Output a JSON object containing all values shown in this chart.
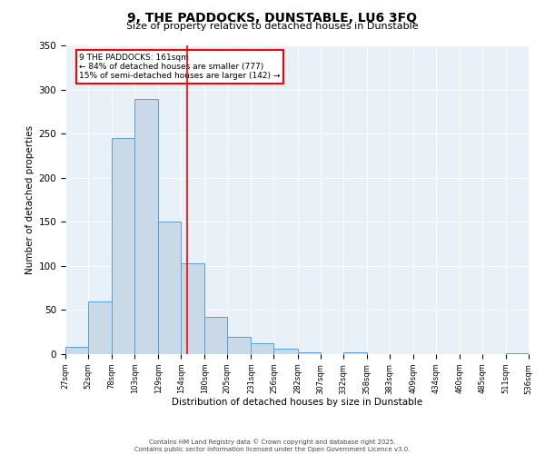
{
  "title": "9, THE PADDOCKS, DUNSTABLE, LU6 3FQ",
  "subtitle": "Size of property relative to detached houses in Dunstable",
  "xlabel": "Distribution of detached houses by size in Dunstable",
  "ylabel": "Number of detached properties",
  "bin_edges": [
    27,
    52,
    78,
    103,
    129,
    154,
    180,
    205,
    231,
    256,
    282,
    307,
    332,
    358,
    383,
    409,
    434,
    460,
    485,
    511,
    536
  ],
  "bar_heights": [
    8,
    60,
    245,
    289,
    150,
    103,
    42,
    20,
    12,
    6,
    2,
    0,
    2,
    0,
    0,
    0,
    0,
    0,
    0,
    1
  ],
  "bar_color": "#c9d9e8",
  "bar_edge_color": "#5a9fd4",
  "vline_x": 161,
  "vline_color": "red",
  "annotation_title": "9 THE PADDOCKS: 161sqm",
  "annotation_line1": "← 84% of detached houses are smaller (777)",
  "annotation_line2": "15% of semi-detached houses are larger (142) →",
  "annotation_box_color": "red",
  "ylim": [
    0,
    350
  ],
  "yticks": [
    0,
    50,
    100,
    150,
    200,
    250,
    300,
    350
  ],
  "background_color": "#e8f0f8",
  "footer_line1": "Contains HM Land Registry data © Crown copyright and database right 2025.",
  "footer_line2": "Contains public sector information licensed under the Open Government Licence v3.0."
}
